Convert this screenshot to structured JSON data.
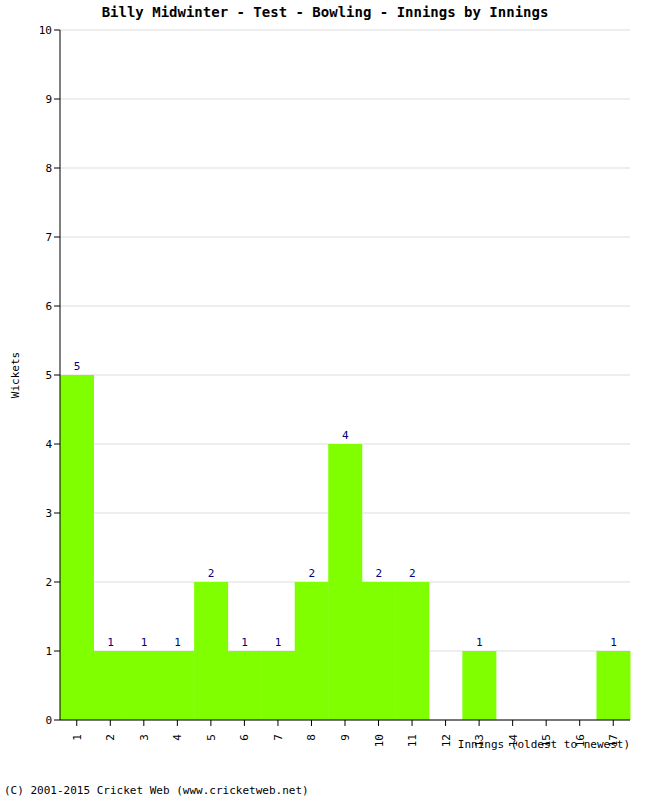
{
  "chart_data": {
    "type": "bar",
    "title": "Billy Midwinter - Test - Bowling - Innings by Innings",
    "x_label": "Innings (oldest to newest)",
    "y_label": "Wickets",
    "annotations": [
      "(C) 2001-2015 Cricket Web (www.cricketweb.net)"
    ],
    "categories": [
      "1",
      "2",
      "3",
      "4",
      "5",
      "6",
      "7",
      "8",
      "9",
      "10",
      "11",
      "12",
      "13",
      "14",
      "15",
      "16",
      "17"
    ],
    "values": [
      5,
      1,
      1,
      1,
      2,
      1,
      1,
      2,
      4,
      2,
      2,
      0,
      1,
      0,
      0,
      0,
      1
    ],
    "color": "#7fff00",
    "ylim": [
      0,
      10
    ],
    "yticks": [
      0,
      1,
      2,
      3,
      4,
      5,
      6,
      7,
      8,
      9,
      10
    ],
    "grid": true,
    "data_labels": true
  }
}
